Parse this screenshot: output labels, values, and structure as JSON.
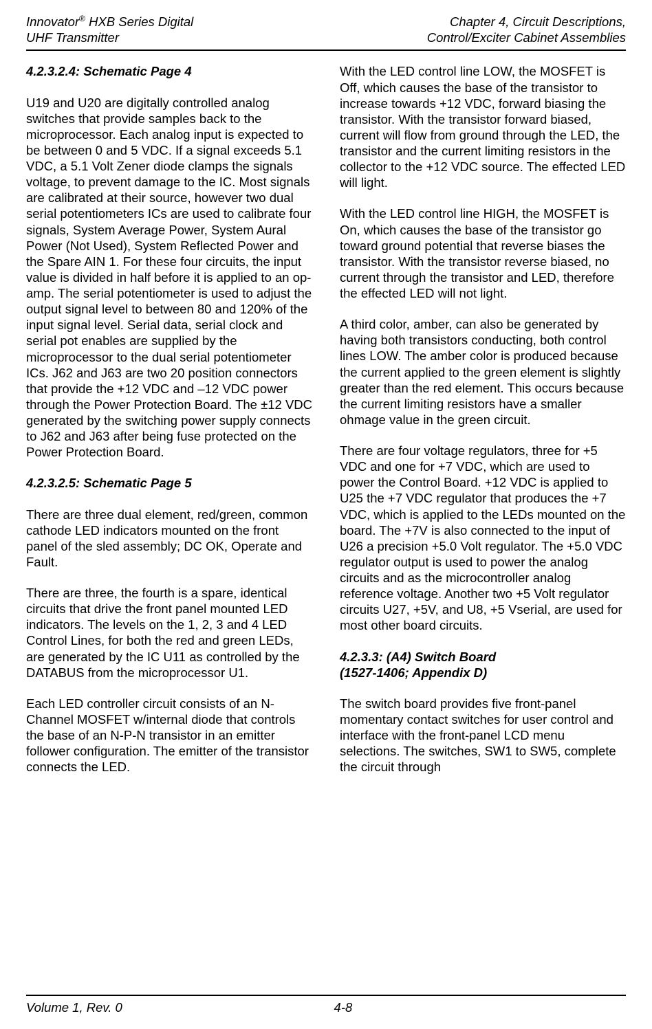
{
  "header": {
    "left_line1": "Innovator",
    "left_reg": "®",
    "left_line1b": " HXB Series Digital",
    "left_line2": "UHF Transmitter",
    "right_line1": "Chapter 4, Circuit Descriptions,",
    "right_line2": "Control/Exciter Cabinet Assemblies"
  },
  "section1_heading": "4.2.3.2.4: Schematic Page 4",
  "section1_p1": "U19 and U20 are digitally controlled analog switches that provide samples back to the microprocessor.  Each analog input is expected to be between 0 and 5 VDC.  If a signal exceeds 5.1 VDC, a 5.1 Volt Zener diode clamps the signals voltage, to prevent damage to the IC.  Most signals are calibrated at their source, however two dual serial potentiometers ICs are used to calibrate four signals, System Average Power, System Aural Power (Not Used), System Reflected Power and the Spare AIN 1.  For these four circuits, the input value is divided in half before it is applied to an op-amp.  The serial potentiometer is used to adjust the output signal level to between 80 and 120% of the input signal level.  Serial data, serial clock and serial pot enables are supplied by the microprocessor to the dual serial potentiometer ICs.  J62 and J63 are two 20 position connectors that provide the +12 VDC and –12 VDC power through the Power Protection Board.  The ±12 VDC generated by the switching power supply connects to J62 and J63 after being fuse protected on the Power Protection Board.",
  "section2_heading": "4.2.3.2.5: Schematic Page 5",
  "section2_p1": "There are three dual element, red/green, common cathode LED indicators mounted on the front panel of the sled assembly; DC OK, Operate and Fault.",
  "section2_p2": "There are three, the fourth is a spare, identical circuits that drive the front panel mounted LED indicators.  The levels on the 1, 2, 3 and 4 LED Control Lines, for both the red and green LEDs, are generated by the IC U11 as controlled by the DATABUS from the microprocessor U1.",
  "section2_p3": "Each LED controller circuit consists of an N-Channel MOSFET w/internal diode that controls the base of an N-P-N transistor in an emitter follower configuration.  The emitter of the transistor connects the LED.",
  "section2_p4": "With the LED control line LOW, the MOSFET is Off, which causes the base of the transistor to increase towards +12 VDC, forward biasing the transistor.  With the transistor forward biased, current will flow from ground through the LED, the transistor and the current limiting resistors in the collector to the +12 VDC source.  The effected LED will light.",
  "section2_p5": "With the LED control line HIGH, the MOSFET is On, which causes the base of the transistor go toward ground potential that reverse biases the transistor.  With the transistor reverse biased, no current through the transistor and LED, therefore the effected LED will not light.",
  "section2_p6": "A third color, amber, can also be generated by having both transistors conducting, both control lines LOW.  The amber color is produced because the current applied to the green element is slightly greater than the red element.  This occurs because the current limiting resistors have a smaller ohmage value in the green circuit.",
  "section2_p7": "There are four voltage regulators, three for +5 VDC and one for +7 VDC, which are used to power the Control Board.  +12 VDC is applied to U25 the +7 VDC regulator that produces the +7 VDC, which is applied to the LEDs mounted on the board.  The +7V is also connected to the input of U26 a precision +5.0 Volt regulator.  The +5.0 VDC regulator output is used to power the analog circuits and as the microcontroller analog reference voltage.  Another two +5 Volt regulator circuits U27, +5V, and U8, +5 Vserial, are used for most other board circuits.",
  "section3_heading_l1": "4.2.3.3: (A4) Switch Board",
  "section3_heading_l2": " (1527-1406; Appendix D)",
  "section3_p1": "The switch board provides five front-panel momentary contact switches for user control and interface with the front-panel LCD menu selections. The switches, SW1 to SW5, complete the circuit through",
  "footer": {
    "volume": "Volume 1, Rev. 0",
    "page": "4-8"
  }
}
